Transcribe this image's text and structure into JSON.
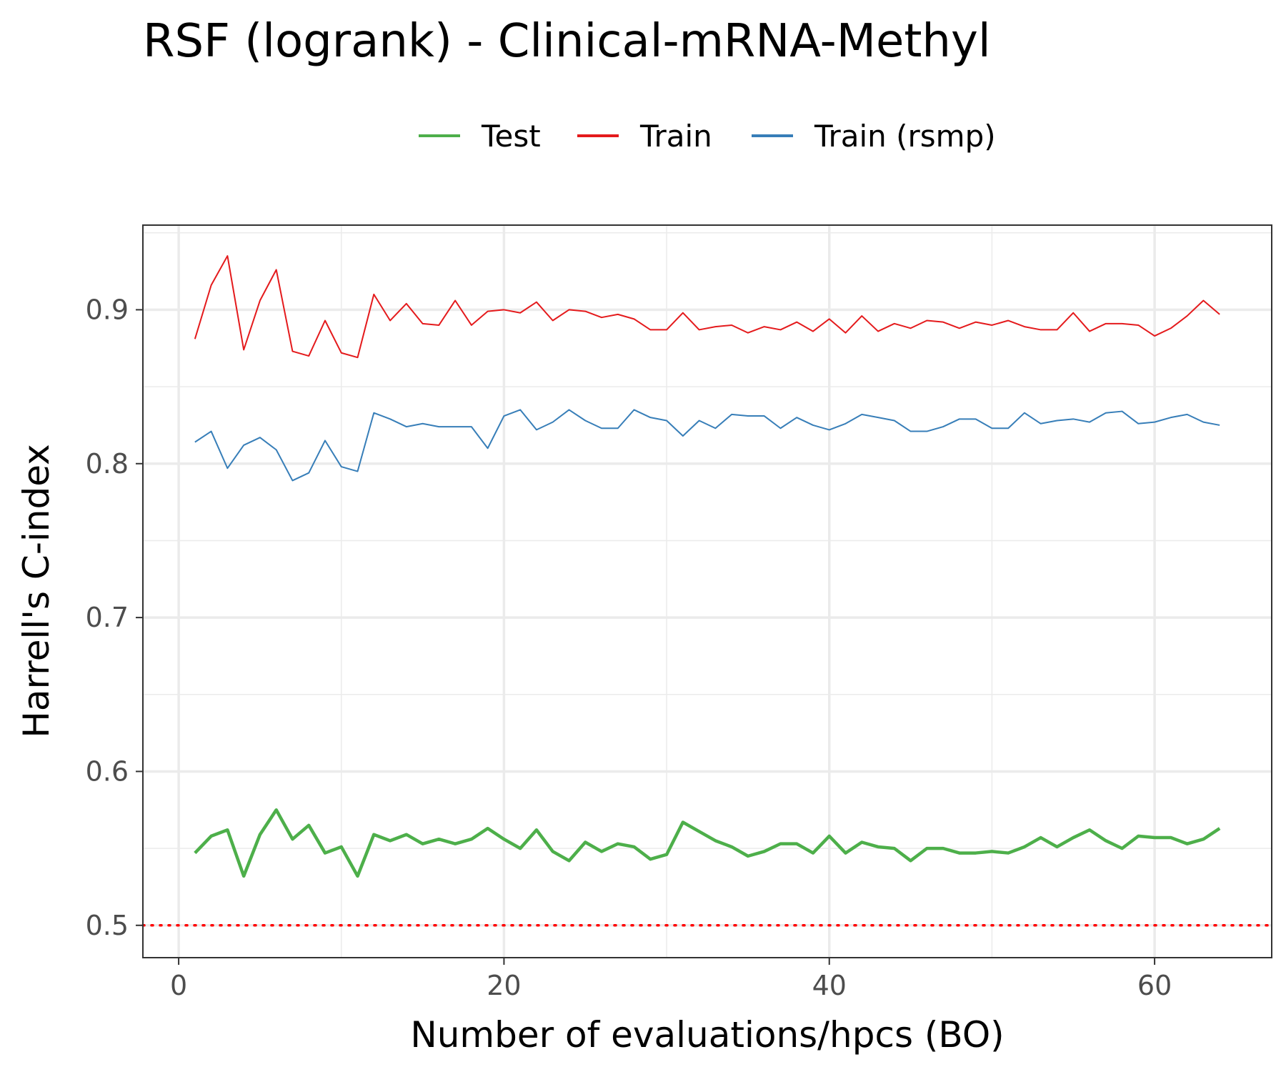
{
  "chart_data": {
    "type": "line",
    "title": "RSF (logrank) - Clinical-mRNA-Methyl",
    "xlabel": "Number of evaluations/hpcs (BO)",
    "ylabel": "Harrell's C-index",
    "xlim": [
      -2.2,
      67.2
    ],
    "ylim": [
      0.479,
      0.955
    ],
    "x_ticks": [
      0,
      20,
      40,
      60
    ],
    "y_ticks": [
      0.5,
      0.6,
      0.7,
      0.8,
      0.9
    ],
    "x_tick_labels": [
      "0",
      "20",
      "40",
      "60"
    ],
    "y_tick_labels": [
      "0.5",
      "0.6",
      "0.7",
      "0.8",
      "0.9"
    ],
    "grid": true,
    "legend_position": "top",
    "reference_line": {
      "y": 0.5,
      "color": "#ff0000",
      "style": "dotted"
    },
    "x": [
      1,
      2,
      3,
      4,
      5,
      6,
      7,
      8,
      9,
      10,
      11,
      12,
      13,
      14,
      15,
      16,
      17,
      18,
      19,
      20,
      21,
      22,
      23,
      24,
      25,
      26,
      27,
      28,
      29,
      30,
      31,
      32,
      33,
      34,
      35,
      36,
      37,
      38,
      39,
      40,
      41,
      42,
      43,
      44,
      45,
      46,
      47,
      48,
      49,
      50,
      51,
      52,
      53,
      54,
      55,
      56,
      57,
      58,
      59,
      60,
      61,
      62,
      63,
      64
    ],
    "series": [
      {
        "name": "Test",
        "color": "#4DAF4A",
        "width": 4.5,
        "values": [
          0.547,
          0.558,
          0.562,
          0.532,
          0.559,
          0.575,
          0.556,
          0.565,
          0.547,
          0.551,
          0.532,
          0.559,
          0.555,
          0.559,
          0.553,
          0.556,
          0.553,
          0.556,
          0.563,
          0.556,
          0.55,
          0.562,
          0.548,
          0.542,
          0.554,
          0.548,
          0.553,
          0.551,
          0.543,
          0.546,
          0.567,
          0.561,
          0.555,
          0.551,
          0.545,
          0.548,
          0.553,
          0.553,
          0.547,
          0.558,
          0.547,
          0.554,
          0.551,
          0.55,
          0.542,
          0.55,
          0.55,
          0.547,
          0.547,
          0.548,
          0.547,
          0.551,
          0.557,
          0.551,
          0.557,
          0.562,
          0.555,
          0.55,
          0.558,
          0.557,
          0.557,
          0.553,
          0.556,
          0.563
        ]
      },
      {
        "name": "Train",
        "color": "#E41A1C",
        "width": 2,
        "values": [
          0.881,
          0.916,
          0.935,
          0.874,
          0.906,
          0.926,
          0.873,
          0.87,
          0.893,
          0.872,
          0.869,
          0.91,
          0.893,
          0.904,
          0.891,
          0.89,
          0.906,
          0.89,
          0.899,
          0.9,
          0.898,
          0.905,
          0.893,
          0.9,
          0.899,
          0.895,
          0.897,
          0.894,
          0.887,
          0.887,
          0.898,
          0.887,
          0.889,
          0.89,
          0.885,
          0.889,
          0.887,
          0.892,
          0.886,
          0.894,
          0.885,
          0.896,
          0.886,
          0.891,
          0.888,
          0.893,
          0.892,
          0.888,
          0.892,
          0.89,
          0.893,
          0.889,
          0.887,
          0.887,
          0.898,
          0.886,
          0.891,
          0.891,
          0.89,
          0.883,
          0.888,
          0.896,
          0.906,
          0.897
        ]
      },
      {
        "name": "Train (rsmp)",
        "color": "#377EB8",
        "width": 2,
        "values": [
          0.814,
          0.821,
          0.797,
          0.812,
          0.817,
          0.809,
          0.789,
          0.794,
          0.815,
          0.798,
          0.795,
          0.833,
          0.829,
          0.824,
          0.826,
          0.824,
          0.824,
          0.824,
          0.81,
          0.831,
          0.835,
          0.822,
          0.827,
          0.835,
          0.828,
          0.823,
          0.823,
          0.835,
          0.83,
          0.828,
          0.818,
          0.828,
          0.823,
          0.832,
          0.831,
          0.831,
          0.823,
          0.83,
          0.825,
          0.822,
          0.826,
          0.832,
          0.83,
          0.828,
          0.821,
          0.821,
          0.824,
          0.829,
          0.829,
          0.823,
          0.823,
          0.833,
          0.826,
          0.828,
          0.829,
          0.827,
          0.833,
          0.834,
          0.826,
          0.827,
          0.83,
          0.832,
          0.827,
          0.825
        ]
      }
    ]
  },
  "legend": {
    "labels": [
      "Test",
      "Train",
      "Train (rsmp)"
    ],
    "colors": [
      "#4DAF4A",
      "#E41A1C",
      "#377EB8"
    ]
  }
}
